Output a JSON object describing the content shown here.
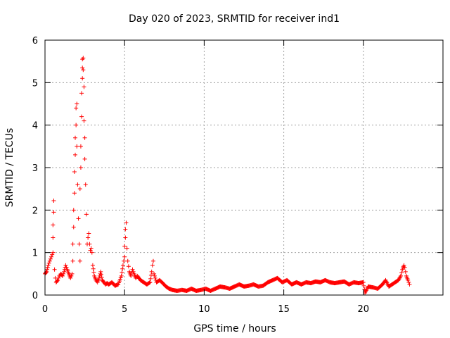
{
  "chart_data": {
    "type": "scatter",
    "title": "Day 020 of 2023, SRMTID for receiver ind1",
    "xlabel": "GPS time / hours",
    "ylabel": "SRMTID / TECUs",
    "xlim": [
      0,
      25
    ],
    "ylim": [
      0,
      6
    ],
    "x_ticks": [
      "0",
      "5",
      "10",
      "15",
      "20"
    ],
    "y_ticks": [
      "0",
      "1",
      "2",
      "3",
      "4",
      "5",
      "6"
    ],
    "grid": true,
    "marker": "+",
    "color": "#ff0000",
    "series": [
      {
        "name": "SRMTID",
        "points": [
          [
            0.0,
            0.5
          ],
          [
            0.1,
            0.55
          ],
          [
            0.2,
            0.7
          ],
          [
            0.3,
            0.8
          ],
          [
            0.35,
            0.85
          ],
          [
            0.4,
            0.9
          ],
          [
            0.45,
            0.95
          ],
          [
            0.5,
            1.0
          ],
          [
            0.5,
            1.35
          ],
          [
            0.5,
            1.65
          ],
          [
            0.55,
            1.95
          ],
          [
            0.55,
            2.22
          ],
          [
            0.6,
            0.6
          ],
          [
            0.65,
            0.4
          ],
          [
            0.7,
            0.3
          ],
          [
            0.8,
            0.35
          ],
          [
            0.9,
            0.45
          ],
          [
            1.0,
            0.5
          ],
          [
            1.1,
            0.45
          ],
          [
            1.2,
            0.55
          ],
          [
            1.3,
            0.7
          ],
          [
            1.4,
            0.6
          ],
          [
            1.5,
            0.5
          ],
          [
            1.6,
            0.4
          ],
          [
            1.7,
            0.5
          ],
          [
            1.75,
            0.8
          ],
          [
            1.75,
            1.2
          ],
          [
            1.8,
            1.6
          ],
          [
            1.8,
            2.0
          ],
          [
            1.85,
            2.4
          ],
          [
            1.85,
            2.9
          ],
          [
            1.9,
            3.3
          ],
          [
            1.9,
            3.7
          ],
          [
            1.95,
            4.0
          ],
          [
            1.95,
            4.4
          ],
          [
            2.0,
            4.5
          ],
          [
            2.0,
            3.5
          ],
          [
            2.05,
            2.6
          ],
          [
            2.1,
            1.8
          ],
          [
            2.15,
            1.2
          ],
          [
            2.2,
            0.8
          ],
          [
            2.2,
            2.5
          ],
          [
            2.25,
            3.0
          ],
          [
            2.25,
            3.5
          ],
          [
            2.3,
            4.2
          ],
          [
            2.3,
            4.75
          ],
          [
            2.35,
            5.1
          ],
          [
            2.35,
            5.35
          ],
          [
            2.35,
            5.55
          ],
          [
            2.4,
            5.58
          ],
          [
            2.4,
            5.3
          ],
          [
            2.45,
            4.9
          ],
          [
            2.45,
            4.1
          ],
          [
            2.5,
            3.7
          ],
          [
            2.5,
            3.2
          ],
          [
            2.55,
            2.6
          ],
          [
            2.6,
            1.9
          ],
          [
            2.65,
            1.2
          ],
          [
            2.7,
            1.35
          ],
          [
            2.75,
            1.45
          ],
          [
            2.8,
            1.2
          ],
          [
            2.85,
            1.05
          ],
          [
            2.9,
            1.1
          ],
          [
            2.95,
            1.0
          ],
          [
            3.0,
            0.7
          ],
          [
            3.1,
            0.45
          ],
          [
            3.2,
            0.35
          ],
          [
            3.3,
            0.3
          ],
          [
            3.4,
            0.4
          ],
          [
            3.5,
            0.55
          ],
          [
            3.6,
            0.35
          ],
          [
            3.7,
            0.3
          ],
          [
            3.8,
            0.25
          ],
          [
            3.9,
            0.28
          ],
          [
            4.0,
            0.25
          ],
          [
            4.2,
            0.3
          ],
          [
            4.4,
            0.22
          ],
          [
            4.6,
            0.25
          ],
          [
            4.8,
            0.45
          ],
          [
            4.9,
            0.7
          ],
          [
            5.0,
            0.9
          ],
          [
            5.0,
            1.15
          ],
          [
            5.05,
            1.35
          ],
          [
            5.05,
            1.55
          ],
          [
            5.1,
            1.7
          ],
          [
            5.15,
            1.1
          ],
          [
            5.2,
            0.8
          ],
          [
            5.3,
            0.55
          ],
          [
            5.4,
            0.45
          ],
          [
            5.5,
            0.6
          ],
          [
            5.6,
            0.5
          ],
          [
            5.7,
            0.4
          ],
          [
            5.8,
            0.45
          ],
          [
            6.0,
            0.35
          ],
          [
            6.2,
            0.3
          ],
          [
            6.4,
            0.25
          ],
          [
            6.6,
            0.3
          ],
          [
            6.7,
            0.55
          ],
          [
            6.75,
            0.7
          ],
          [
            6.8,
            0.8
          ],
          [
            6.85,
            0.5
          ],
          [
            7.0,
            0.3
          ],
          [
            7.2,
            0.35
          ],
          [
            7.4,
            0.28
          ],
          [
            7.6,
            0.2
          ],
          [
            7.8,
            0.15
          ],
          [
            8.0,
            0.12
          ],
          [
            8.3,
            0.1
          ],
          [
            8.6,
            0.12
          ],
          [
            8.9,
            0.1
          ],
          [
            9.2,
            0.15
          ],
          [
            9.5,
            0.1
          ],
          [
            9.8,
            0.12
          ],
          [
            10.1,
            0.15
          ],
          [
            10.4,
            0.1
          ],
          [
            10.7,
            0.15
          ],
          [
            11.0,
            0.2
          ],
          [
            11.3,
            0.18
          ],
          [
            11.6,
            0.15
          ],
          [
            11.9,
            0.2
          ],
          [
            12.2,
            0.25
          ],
          [
            12.5,
            0.2
          ],
          [
            12.8,
            0.22
          ],
          [
            13.1,
            0.25
          ],
          [
            13.4,
            0.2
          ],
          [
            13.7,
            0.22
          ],
          [
            14.0,
            0.3
          ],
          [
            14.3,
            0.35
          ],
          [
            14.6,
            0.4
          ],
          [
            14.9,
            0.3
          ],
          [
            15.2,
            0.35
          ],
          [
            15.5,
            0.25
          ],
          [
            15.8,
            0.3
          ],
          [
            16.1,
            0.25
          ],
          [
            16.4,
            0.3
          ],
          [
            16.7,
            0.28
          ],
          [
            17.0,
            0.32
          ],
          [
            17.3,
            0.3
          ],
          [
            17.6,
            0.35
          ],
          [
            17.9,
            0.3
          ],
          [
            18.2,
            0.28
          ],
          [
            18.5,
            0.3
          ],
          [
            18.8,
            0.32
          ],
          [
            19.1,
            0.25
          ],
          [
            19.4,
            0.3
          ],
          [
            19.7,
            0.28
          ],
          [
            20.0,
            0.3
          ],
          [
            20.1,
            0.05
          ],
          [
            20.3,
            0.2
          ],
          [
            20.6,
            0.18
          ],
          [
            20.9,
            0.15
          ],
          [
            21.2,
            0.25
          ],
          [
            21.4,
            0.35
          ],
          [
            21.6,
            0.2
          ],
          [
            21.8,
            0.25
          ],
          [
            22.0,
            0.3
          ],
          [
            22.2,
            0.35
          ],
          [
            22.35,
            0.45
          ],
          [
            22.45,
            0.6
          ],
          [
            22.55,
            0.7
          ],
          [
            22.6,
            0.65
          ],
          [
            22.7,
            0.45
          ],
          [
            22.8,
            0.35
          ],
          [
            22.9,
            0.25
          ]
        ]
      }
    ]
  }
}
